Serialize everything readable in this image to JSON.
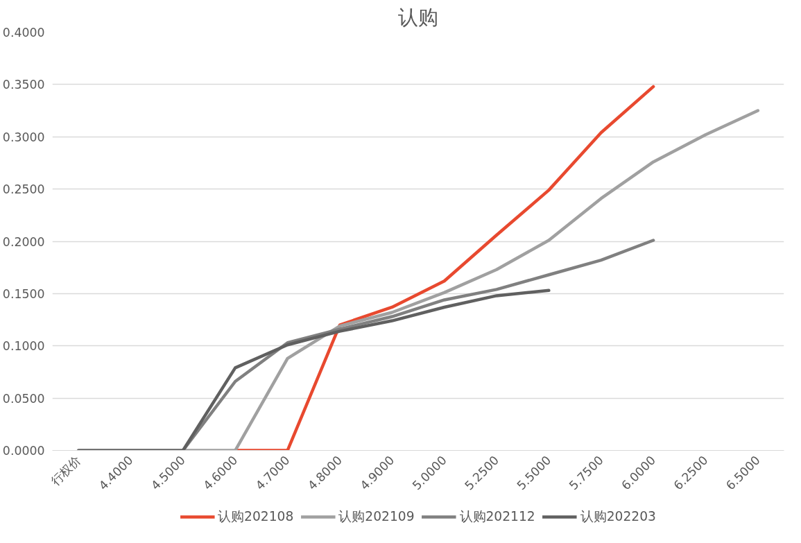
{
  "chart_data": {
    "type": "line",
    "title": "认购",
    "categories": [
      "行权价",
      "4.4000",
      "4.5000",
      "4.6000",
      "4.7000",
      "4.8000",
      "4.9000",
      "5.0000",
      "5.2500",
      "5.5000",
      "5.7500",
      "6.0000",
      "6.2500",
      "6.5000"
    ],
    "series": [
      {
        "name": "认购202108",
        "color": "#e8492f",
        "values": [
          null,
          null,
          null,
          0,
          0,
          0.12,
          0.137,
          0.162,
          0.206,
          0.249,
          0.304,
          0.348,
          null,
          null
        ]
      },
      {
        "name": "认购202109",
        "color": "#a0a0a0",
        "values": [
          null,
          null,
          0,
          0,
          0.088,
          0.119,
          0.132,
          0.151,
          0.173,
          0.201,
          0.241,
          0.276,
          0.302,
          0.325
        ]
      },
      {
        "name": "认购202112",
        "color": "#808080",
        "values": [
          null,
          null,
          0,
          0.066,
          0.103,
          0.116,
          0.128,
          0.144,
          0.154,
          0.168,
          0.182,
          0.201,
          null,
          null
        ]
      },
      {
        "name": "认购202203",
        "color": "#606060",
        "values": [
          0,
          0,
          0,
          0.079,
          0.101,
          0.114,
          0.124,
          0.137,
          0.148,
          0.153,
          null,
          null,
          null,
          null
        ]
      }
    ],
    "ylim": [
      0,
      0.4
    ],
    "yticks": [
      {
        "value": 0,
        "label": "0.0000"
      },
      {
        "value": 0.05,
        "label": "0.0500"
      },
      {
        "value": 0.1,
        "label": "0.1000"
      },
      {
        "value": 0.15,
        "label": "0.1500"
      },
      {
        "value": 0.2,
        "label": "0.2000"
      },
      {
        "value": 0.25,
        "label": "0.2500"
      },
      {
        "value": 0.3,
        "label": "0.3000"
      },
      {
        "value": 0.35,
        "label": "0.3500"
      },
      {
        "value": 0.4,
        "label": "0.4000"
      }
    ],
    "grid": "y",
    "legend": "bottom",
    "marker": "none",
    "line_style": "solid"
  }
}
